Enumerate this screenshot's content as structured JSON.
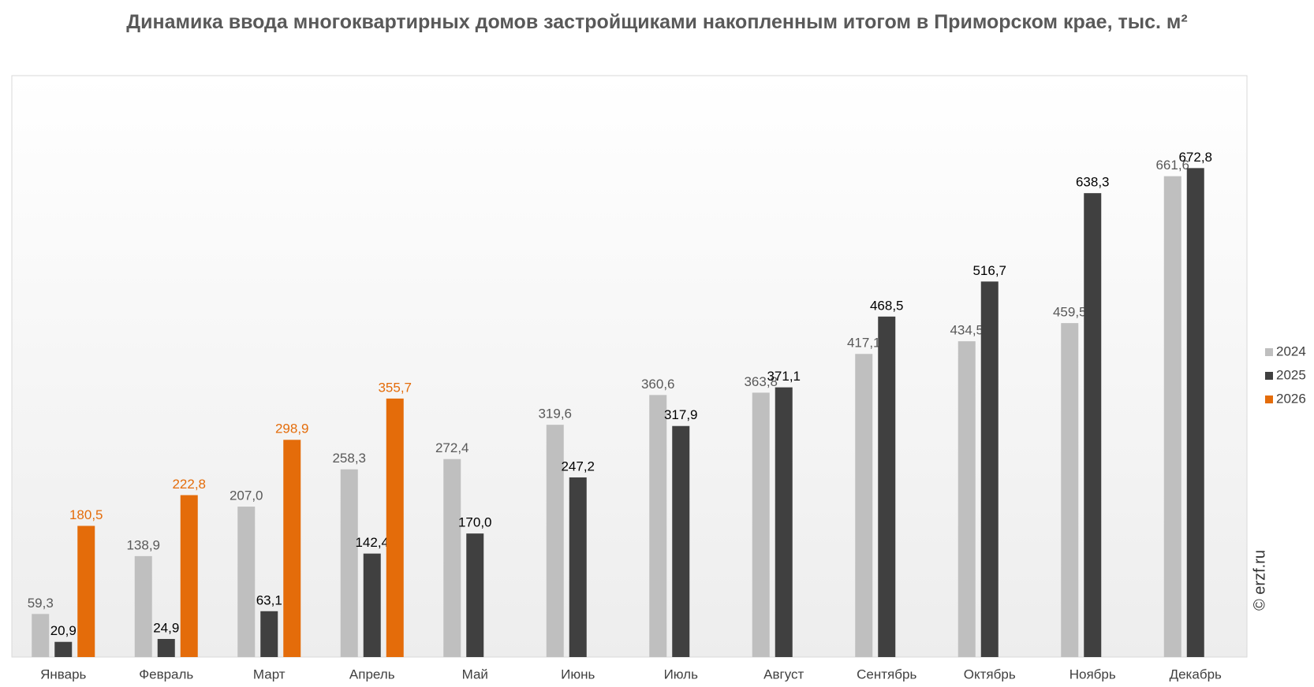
{
  "chart_data": {
    "type": "bar",
    "title": "Динамика ввода многоквартирных домов застройщиками накопленным итогом в Приморском крае, тыс. м²",
    "categories": [
      "Январь",
      "Февраль",
      "Март",
      "Апрель",
      "Май",
      "Июнь",
      "Июль",
      "Август",
      "Сентябрь",
      "Октябрь",
      "Ноябрь",
      "Декабрь"
    ],
    "series": [
      {
        "name": "2024",
        "color": "#bfbfbf",
        "values": [
          59.3,
          138.9,
          207.0,
          258.3,
          272.4,
          319.6,
          360.6,
          363.8,
          417.1,
          434.5,
          459.5,
          661.6
        ],
        "value_labels": [
          "59,3",
          "138,9",
          "207,0",
          "258,3",
          "272,4",
          "319,6",
          "360,6",
          "363,8",
          "417,1",
          "434,5",
          "459,5",
          "661,6"
        ]
      },
      {
        "name": "2025",
        "color": "#404040",
        "values": [
          20.9,
          24.9,
          63.1,
          142.4,
          170.0,
          247.2,
          317.9,
          371.1,
          468.5,
          516.7,
          638.3,
          672.8
        ],
        "value_labels": [
          "20,9",
          "24,9",
          "63,1",
          "142,4",
          "170,0",
          "247,2",
          "317,9",
          "371,1",
          "468,5",
          "516,7",
          "638,3",
          "672,8"
        ]
      },
      {
        "name": "2026",
        "color": "#e46c0a",
        "values": [
          180.5,
          222.8,
          298.9,
          355.7,
          null,
          null,
          null,
          null,
          null,
          null,
          null,
          null
        ],
        "value_labels": [
          "180,5",
          "222,8",
          "298,9",
          "355,7",
          null,
          null,
          null,
          null,
          null,
          null,
          null,
          null
        ]
      }
    ],
    "ylim": [
      0,
      800
    ],
    "source": "© erzf.ru",
    "legend": "right"
  }
}
